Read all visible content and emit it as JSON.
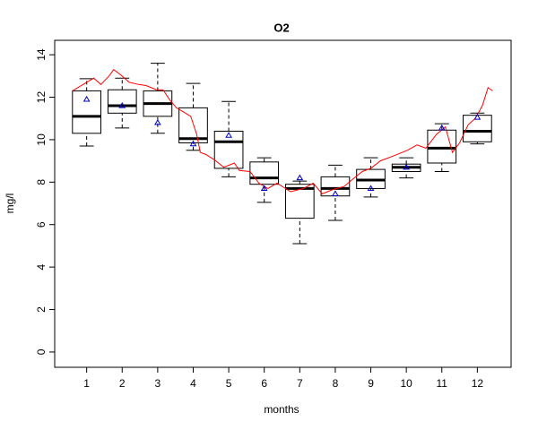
{
  "chart_data": {
    "type": "boxplot",
    "title": "O2",
    "x_label": "months",
    "y_label": "mg/l",
    "x": [
      1,
      2,
      3,
      4,
      5,
      6,
      7,
      8,
      9,
      10,
      11,
      12
    ],
    "whisker_low": [
      9.7,
      10.55,
      10.3,
      9.5,
      8.25,
      7.05,
      5.1,
      6.2,
      7.3,
      8.2,
      8.5,
      9.8
    ],
    "q1": [
      10.3,
      11.25,
      11.1,
      9.85,
      8.65,
      7.9,
      6.3,
      7.35,
      7.7,
      8.5,
      8.9,
      9.9
    ],
    "median": [
      11.1,
      11.6,
      11.7,
      10.05,
      9.9,
      8.2,
      7.7,
      7.7,
      8.1,
      8.7,
      9.6,
      10.4
    ],
    "q3": [
      12.3,
      12.35,
      12.3,
      11.5,
      10.4,
      8.95,
      7.9,
      8.25,
      8.6,
      8.85,
      10.45,
      11.15
    ],
    "whisker_high": [
      12.87,
      12.9,
      13.6,
      12.65,
      11.8,
      9.15,
      8.05,
      8.8,
      9.15,
      9.15,
      10.75,
      11.25
    ],
    "means": [
      11.9,
      11.6,
      10.8,
      9.8,
      10.2,
      7.7,
      8.2,
      7.45,
      7.7,
      8.7,
      10.55,
      11.05
    ],
    "box_color": "#000000",
    "mean_color": "#0000cc",
    "line": {
      "color": "#ff0000",
      "x": [
        0.6,
        1.0,
        1.2,
        1.4,
        1.63,
        1.76,
        1.96,
        2.2,
        2.46,
        2.67,
        2.97,
        3.15,
        3.35,
        3.53,
        3.73,
        3.93,
        4.1,
        4.2,
        4.36,
        4.6,
        4.86,
        5.16,
        5.3,
        5.6,
        5.85,
        6.1,
        6.36,
        6.74,
        7.1,
        7.38,
        7.63,
        7.93,
        8.25,
        8.5,
        8.76,
        9.0,
        9.27,
        9.66,
        10.03,
        10.3,
        10.55,
        10.85,
        11.1,
        11.3,
        11.5,
        11.74,
        11.94,
        12.14,
        12.3,
        12.43
      ],
      "y": [
        12.3,
        12.7,
        12.9,
        12.6,
        13.0,
        13.3,
        13.05,
        12.7,
        12.6,
        12.55,
        12.35,
        12.35,
        11.85,
        11.5,
        11.3,
        11.1,
        10.25,
        9.4,
        9.3,
        9.05,
        8.7,
        8.9,
        8.55,
        8.5,
        7.95,
        7.7,
        7.95,
        7.55,
        7.7,
        7.95,
        7.45,
        7.65,
        7.8,
        8.15,
        8.5,
        8.65,
        9.0,
        9.25,
        9.5,
        9.75,
        9.6,
        10.25,
        10.6,
        9.4,
        9.85,
        10.7,
        11.0,
        11.6,
        12.45,
        12.3
      ]
    },
    "xlim": [
      0.1,
      12.95
    ],
    "ylim": [
      -0.72,
      14.68
    ],
    "xticks": [
      1,
      2,
      3,
      4,
      5,
      6,
      7,
      8,
      9,
      10,
      11,
      12
    ],
    "yticks": [
      0,
      2,
      4,
      6,
      8,
      10,
      12,
      14
    ]
  }
}
